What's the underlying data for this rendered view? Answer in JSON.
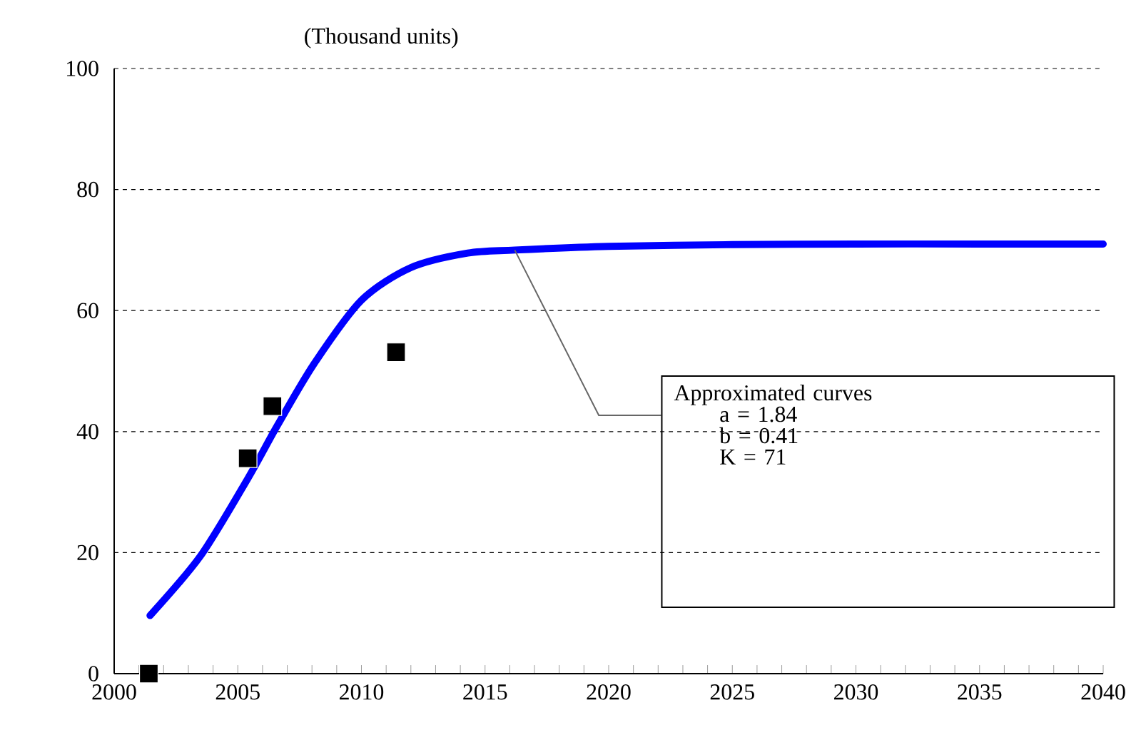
{
  "chart_data": {
    "type": "line",
    "ylabel": "(Thousand units)",
    "xlim": [
      2000,
      2040
    ],
    "xticks": [
      2000,
      2005,
      2010,
      2015,
      2020,
      2025,
      2030,
      2035,
      2040
    ],
    "ylim": [
      0,
      100
    ],
    "yticks": [
      0,
      20,
      40,
      60,
      80,
      100
    ],
    "grid": "y",
    "series": [
      {
        "color": "#0000ff",
        "marker": "none",
        "x": [
          2001.45,
          2003.5,
          2005.4,
          2006.6,
          2008.1,
          2010.0,
          2012.0,
          2014.3,
          2016.2,
          2020,
          2025,
          2030,
          2035,
          2040
        ],
        "values": [
          9.6,
          19.5,
          32.2,
          41,
          51.3,
          61.7,
          67.1,
          69.5,
          70,
          70.6,
          70.9,
          71,
          71,
          71
        ]
      },
      {
        "type": "scatter",
        "color": "#000000",
        "marker": "square",
        "x": [
          2001.4,
          2005.4,
          2006.4,
          2011.4
        ],
        "values": [
          0,
          35.6,
          44.2,
          53.1
        ]
      }
    ],
    "annotations": [
      {
        "text": "Approximated curves",
        "x": 2016.2,
        "y": 70
      },
      "a  = 1.84",
      "b  = 0.41",
      "K  = 71"
    ]
  }
}
